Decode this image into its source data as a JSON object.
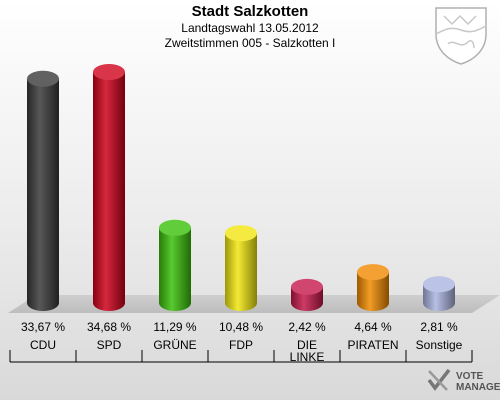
{
  "header": {
    "title": "Stadt Salzkotten",
    "subtitle1": "Landtagswahl 13.05.2012",
    "subtitle2": "Zweitstimmen 005 - Salzkotten I"
  },
  "logo": {
    "line1": "VOTE",
    "line2": "MANAGER"
  },
  "chart_data": {
    "type": "bar",
    "title": "Stadt Salzkotten",
    "categories": [
      "CDU",
      "SPD",
      "GRÜNE",
      "FDP",
      "DIE LINKE",
      "PIRATEN",
      "Sonstige"
    ],
    "values": [
      33.67,
      34.68,
      11.29,
      10.48,
      2.42,
      4.64,
      2.81
    ],
    "value_labels": [
      "33,67 %",
      "34,68 %",
      "11,29 %",
      "10,48 %",
      "2,42 %",
      "4,64 %",
      "2,81 %"
    ],
    "colors": [
      "#3a3a3a",
      "#d0021b",
      "#3ac10a",
      "#f2e610",
      "#c4184a",
      "#f08a00",
      "#aab4e0"
    ],
    "unit": "%",
    "legend": "none",
    "grid": false
  }
}
